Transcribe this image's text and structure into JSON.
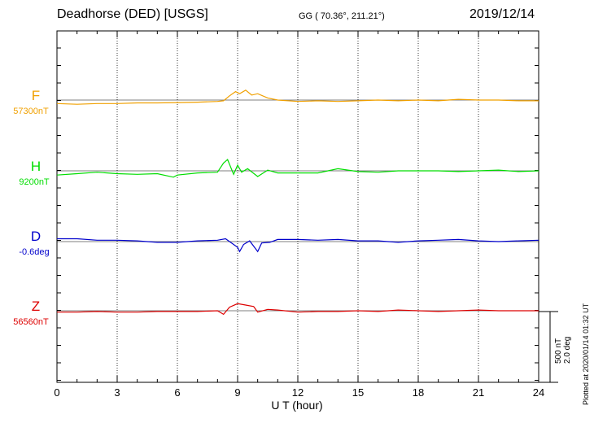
{
  "header": {
    "title": "Deadhorse (DED)  [USGS]",
    "coords": "GG ( 70.36°, 211.21°)",
    "date": "2019/12/14"
  },
  "chart_data": {
    "type": "line",
    "xlabel": "U T (hour)",
    "xlim": [
      0,
      24
    ],
    "xticks": [
      "0",
      "3",
      "6",
      "9",
      "12",
      "15",
      "18",
      "21",
      "24"
    ],
    "grid": "vertical dotted",
    "components": [
      {
        "name": "F",
        "base_label": "57300nT",
        "color": "#f0a000",
        "x": [
          0,
          1,
          2,
          3,
          4,
          5,
          6,
          7,
          8,
          8.3,
          8.6,
          8.9,
          9.1,
          9.4,
          9.7,
          10,
          10.5,
          11,
          12,
          13,
          14,
          15,
          16,
          17,
          18,
          19,
          20,
          21,
          22,
          23,
          24
        ],
        "y": [
          -25,
          -30,
          -25,
          -25,
          -20,
          -20,
          -18,
          -15,
          -10,
          -5,
          30,
          60,
          45,
          70,
          35,
          45,
          15,
          0,
          -10,
          -5,
          -10,
          -5,
          0,
          -5,
          0,
          -5,
          5,
          0,
          0,
          -5,
          -5
        ]
      },
      {
        "name": "H",
        "base_label": "9200nT",
        "color": "#00dd00",
        "x": [
          0,
          1,
          2,
          3,
          4,
          5,
          5.8,
          6,
          7,
          8,
          8.3,
          8.5,
          8.8,
          9,
          9.2,
          9.5,
          10,
          10.5,
          11,
          12,
          13,
          14,
          15,
          16,
          17,
          18,
          19,
          20,
          21,
          22,
          23,
          24
        ],
        "y": [
          -30,
          -20,
          -10,
          -20,
          -25,
          -20,
          -45,
          -30,
          -15,
          -10,
          55,
          80,
          -25,
          40,
          -10,
          15,
          -40,
          5,
          -15,
          -15,
          -15,
          15,
          -5,
          -10,
          0,
          0,
          0,
          -5,
          0,
          5,
          -5,
          0
        ]
      },
      {
        "name": "D",
        "base_label": "-0.6deg",
        "color": "#0000cc",
        "x": [
          0,
          1,
          2,
          3,
          4,
          5,
          6,
          7,
          8,
          8.4,
          8.7,
          9,
          9.1,
          9.3,
          9.6,
          10,
          10.2,
          10.6,
          11,
          12,
          13,
          14,
          15,
          16,
          17,
          18,
          19,
          20,
          21,
          22,
          23,
          24
        ],
        "y": [
          20,
          20,
          10,
          10,
          5,
          -5,
          -5,
          5,
          10,
          20,
          -10,
          -40,
          -70,
          -20,
          5,
          -70,
          -10,
          -5,
          15,
          15,
          10,
          15,
          5,
          5,
          -5,
          5,
          10,
          15,
          5,
          0,
          5,
          10
        ]
      },
      {
        "name": "Z",
        "base_label": "56560nT",
        "color": "#dd0000",
        "x": [
          0,
          1,
          2,
          3,
          4,
          5,
          6,
          7,
          8,
          8.3,
          8.6,
          9,
          9.4,
          9.8,
          10,
          10.5,
          11,
          12,
          13,
          14,
          15,
          16,
          17,
          18,
          19,
          20,
          21,
          22,
          23,
          24
        ],
        "y": [
          -10,
          -10,
          -5,
          -10,
          -10,
          -5,
          -5,
          -5,
          0,
          -25,
          25,
          50,
          40,
          30,
          -10,
          10,
          5,
          -10,
          -5,
          -5,
          0,
          -5,
          5,
          0,
          -5,
          0,
          5,
          0,
          0,
          0
        ]
      }
    ],
    "scale_label_1": "500 nT",
    "scale_label_2": "2.0 deg",
    "plotted_note": "Plotted at 2020/01/14 01:32 UT"
  }
}
